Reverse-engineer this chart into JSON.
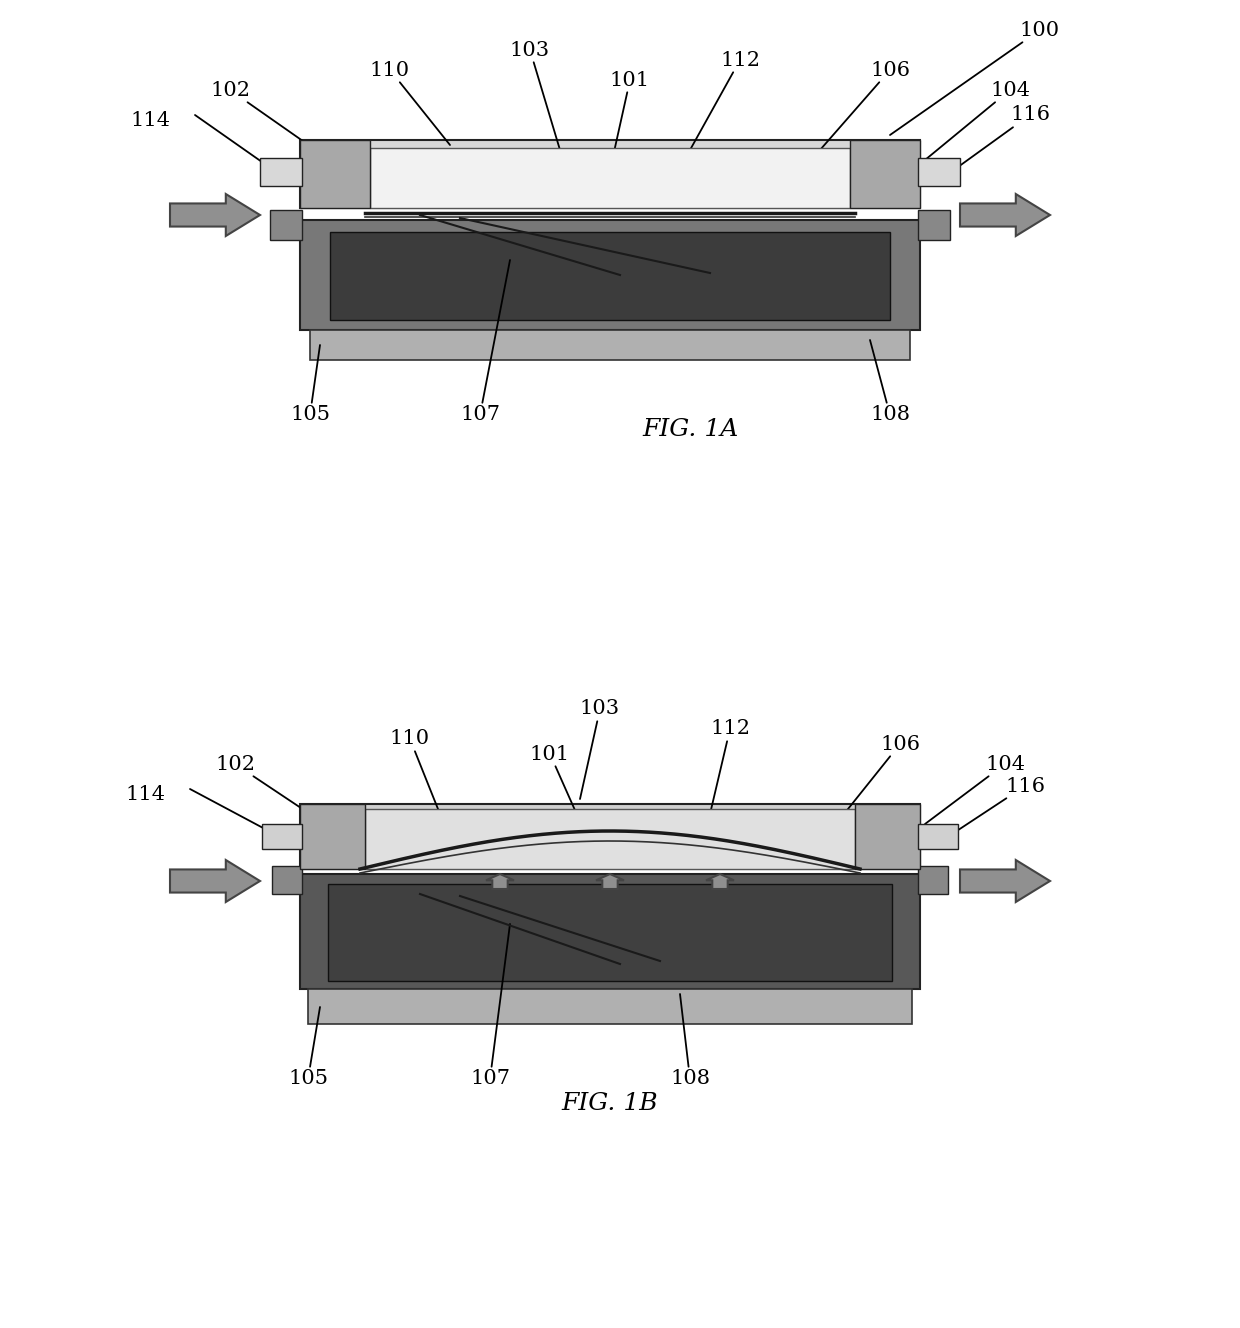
{
  "fig_width": 12.4,
  "fig_height": 13.28,
  "dpi": 100,
  "bg_color": "#ffffff",
  "lc": "#222222",
  "fig1a_label": "FIG. 1A",
  "fig1b_label": "FIG. 1B",
  "ref_fontsize": 15,
  "fig_label_fontsize": 18
}
